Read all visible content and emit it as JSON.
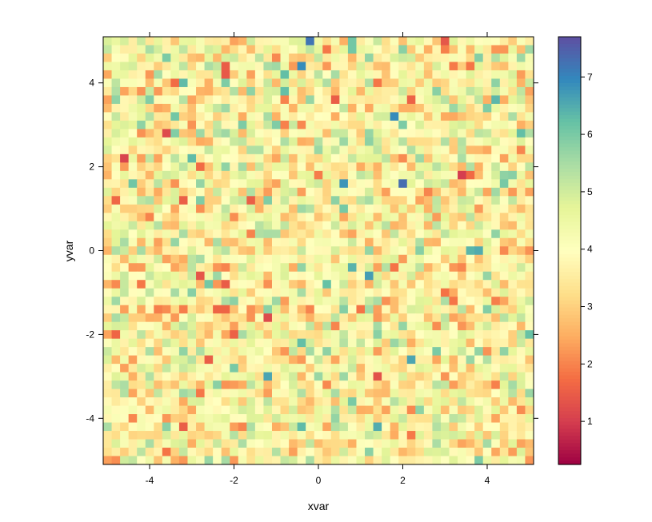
{
  "chart_data": {
    "type": "heatmap",
    "title": "",
    "xlabel": "xvar",
    "ylabel": "yvar",
    "xlim": [
      -5.1,
      5.1
    ],
    "ylim": [
      -5.1,
      5.1
    ],
    "grid": false,
    "x_ticks": [
      -4,
      -2,
      0,
      2,
      4
    ],
    "x_tick_labels": [
      "-4",
      "-2",
      "0",
      "2",
      "4"
    ],
    "y_ticks": [
      -4,
      -2,
      0,
      2,
      4
    ],
    "y_tick_labels": [
      "-4",
      "-2",
      "0",
      "2",
      "4"
    ],
    "grid_cells": {
      "x": 51,
      "y": 51
    },
    "cell_values_description_free": true,
    "value_range": [
      0.25,
      7.7
    ],
    "colorbar": {
      "ticks": [
        1,
        2,
        3,
        4,
        5,
        6,
        7
      ],
      "tick_labels": [
        "1",
        "2",
        "3",
        "4",
        "5",
        "6",
        "7"
      ],
      "placement": "right",
      "colors": [
        "#9E0142",
        "#D53E4F",
        "#F46D43",
        "#FDAE61",
        "#FEE08B",
        "#FFFFBF",
        "#E6F598",
        "#ABDDA4",
        "#66C2A5",
        "#3288BD",
        "#5E4FA2"
      ]
    },
    "notable_cells": [
      {
        "x": -0.3,
        "y": 4.9,
        "value": 7.2
      },
      {
        "x": -0.5,
        "y": 4.4,
        "value": 6.9
      },
      {
        "x": 1.9,
        "y": 1.6,
        "value": 7.3
      },
      {
        "x": 0.5,
        "y": 1.6,
        "value": 6.8
      },
      {
        "x": 1.8,
        "y": 3.2,
        "value": 6.9
      },
      {
        "x": -4.6,
        "y": 2.1,
        "value": 1.1
      },
      {
        "x": -3.6,
        "y": 2.8,
        "value": 1.2
      },
      {
        "x": 3.3,
        "y": 1.8,
        "value": 1.0
      },
      {
        "x": -2.5,
        "y": -1.3,
        "value": 1.6
      },
      {
        "x": -2.3,
        "y": -1.3,
        "value": 1.6
      },
      {
        "x": -1.3,
        "y": -1.5,
        "value": 1.2
      },
      {
        "x": 0.7,
        "y": -0.3,
        "value": 6.4
      },
      {
        "x": 3.8,
        "y": 0.0,
        "value": 6.5
      },
      {
        "x": -3.1,
        "y": 4.1,
        "value": 6.3
      },
      {
        "x": -0.5,
        "y": -4.2,
        "value": 6.3
      },
      {
        "x": 4.9,
        "y": -1.9,
        "value": 6.2
      }
    ]
  }
}
